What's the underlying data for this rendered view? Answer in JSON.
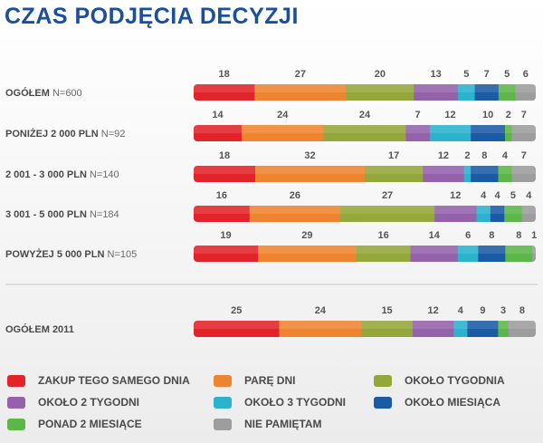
{
  "title": "CZAS PODJĘCIA DECYZJI",
  "colors": {
    "zakup": "#e3232a",
    "pare_dni": "#ee8430",
    "tydzien": "#94a73b",
    "dwa_tygodnie": "#9461ab",
    "trzy_tygodnie": "#2bb2cc",
    "miesiac": "#1b5aa4",
    "ponad_2_miesiace": "#5db648",
    "nie_pamietam": "#9d9d9d"
  },
  "chart_data": {
    "type": "bar",
    "stacked": true,
    "orientation": "horizontal",
    "legend": [
      {
        "key": "zakup",
        "label": "ZAKUP TEGO SAMEGO DNIA"
      },
      {
        "key": "pare_dni",
        "label": "PARĘ DNI"
      },
      {
        "key": "tydzien",
        "label": "OKOŁO TYGODNIA"
      },
      {
        "key": "dwa_tygodnie",
        "label": "OKOŁO 2 TYGODNI"
      },
      {
        "key": "trzy_tygodnie",
        "label": "OKOŁO 3 TYGODNI"
      },
      {
        "key": "miesiac",
        "label": "OKOŁO MIESIĄCA"
      },
      {
        "key": "ponad_2_miesiace",
        "label": "PONAD 2 MIESIĄCE"
      },
      {
        "key": "nie_pamietam",
        "label": "NIE PAMIĘTAM"
      }
    ],
    "rows": [
      {
        "label": "OGÓŁEM",
        "n": "N=600",
        "values": [
          18,
          27,
          20,
          13,
          5,
          7,
          5,
          6
        ]
      },
      {
        "label": "PONIŻEJ 2 000 PLN",
        "n": "N=92",
        "values": [
          14,
          24,
          24,
          7,
          12,
          10,
          2,
          7
        ]
      },
      {
        "label": "2 001 - 3 000 PLN",
        "n": "N=140",
        "values": [
          18,
          32,
          17,
          12,
          2,
          8,
          4,
          7
        ]
      },
      {
        "label": "3 001 - 5 000 PLN",
        "n": "N=184",
        "values": [
          16,
          26,
          27,
          12,
          4,
          4,
          5,
          4
        ]
      },
      {
        "label": "POWYŻEJ 5 000 PLN",
        "n": "N=105",
        "values": [
          19,
          29,
          16,
          14,
          6,
          8,
          8,
          1
        ]
      },
      {
        "label": "OGÓŁEM 2011",
        "n": "",
        "values": [
          25,
          24,
          15,
          12,
          4,
          9,
          3,
          8
        ]
      }
    ]
  }
}
